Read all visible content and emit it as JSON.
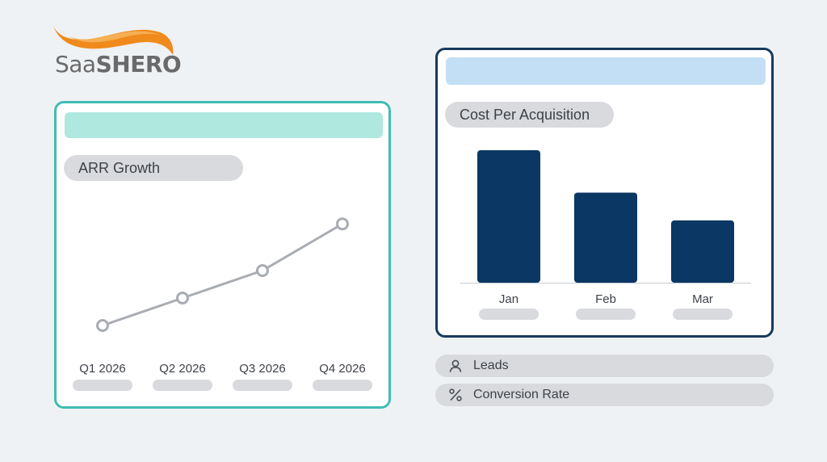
{
  "brand": {
    "logo_prefix": "Saa",
    "logo_suffix": "SHERO",
    "accent": "#f08a1c"
  },
  "colors": {
    "arr_border": "#3fbdb2",
    "arr_header": "#aee8df",
    "cpa_border": "#173a5e",
    "cpa_header": "#c2dff6",
    "bar_fill": "#0a3763",
    "line_stroke": "#a9adb3"
  },
  "chart_data": [
    {
      "type": "line",
      "title": "ARR Growth",
      "categories": [
        "Q1 2026",
        "Q2 2026",
        "Q3 2026",
        "Q4 2026"
      ],
      "series": [
        {
          "values": [
            1,
            3,
            5,
            8.4
          ]
        }
      ],
      "ylim": [
        0,
        10
      ],
      "grid": false,
      "markers": "hollow-circle"
    },
    {
      "type": "bar",
      "title": "Cost Per Acquisition",
      "categories": [
        "Jan",
        "Feb",
        "Mar"
      ],
      "series": [
        {
          "values": [
            100,
            68,
            47
          ]
        }
      ],
      "ylim": [
        0,
        100
      ],
      "grid": false
    }
  ],
  "metrics": [
    {
      "icon": "user-icon",
      "label": "Leads"
    },
    {
      "icon": "percent-icon",
      "label": "Conversion Rate"
    }
  ]
}
